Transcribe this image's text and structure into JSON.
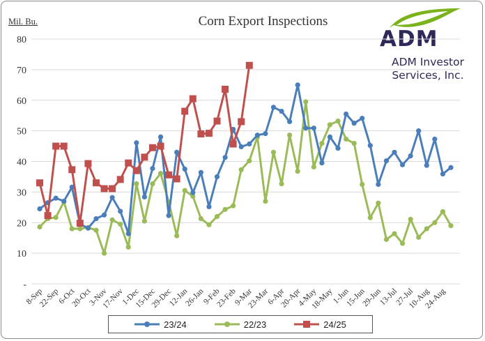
{
  "chart_data": {
    "type": "line",
    "title": "Corn Export Inspections",
    "ylabel": "Mil. Bu.",
    "xlabel": "",
    "ylim": [
      0,
      80
    ],
    "yticks": [
      0,
      10,
      20,
      30,
      40,
      50,
      60,
      70,
      80
    ],
    "ytick_labels": [
      "-",
      "10",
      "20",
      "30",
      "40",
      "50",
      "60",
      "70",
      "80"
    ],
    "grid": true,
    "legend_position": "bottom",
    "x_tick_labels": [
      "8-Sep",
      "22-Sep",
      "6-Oct",
      "20-Oct",
      "3-Nov",
      "17-Nov",
      "1-Dec",
      "15-Dec",
      "29-Dec",
      "12-Jan",
      "26-Jan",
      "9-Feb",
      "23-Feb",
      "9-Mar",
      "23-Mar",
      "6-Apr",
      "20-Apr",
      "4-May",
      "18-May",
      "1-Jun",
      "15-Jun",
      "29-Jun",
      "13-Jul",
      "27-Jul",
      "10-Aug",
      "24-Aug"
    ],
    "series": [
      {
        "name": "23/24",
        "color": "#4a7ebb",
        "marker": "circle",
        "values": [
          24.5,
          26.5,
          28,
          27,
          31.6,
          19.5,
          18.2,
          21.3,
          22.5,
          28.2,
          23.7,
          16.4,
          46.1,
          28.4,
          37.7,
          48,
          22.3,
          43,
          37.5,
          29.8,
          36.4,
          25.2,
          35,
          41.3,
          50.5,
          44.8,
          45.7,
          48.6,
          49.1,
          57.7,
          56.4,
          53,
          65,
          50.9,
          50.9,
          39.5,
          48,
          44.3,
          55.5,
          52.5,
          54.1,
          45.2,
          32.5,
          40.2,
          43,
          38.9,
          41.8,
          50,
          38.7,
          47.3,
          35.9,
          38
        ]
      },
      {
        "name": "22/23",
        "color": "#9bbb59",
        "marker": "circle",
        "values": [
          18.6,
          21.3,
          21.7,
          26.8,
          18,
          18,
          18.4,
          17.5,
          10,
          20.9,
          19.5,
          12,
          32.7,
          20.5,
          32.7,
          36.1,
          26.8,
          15.7,
          30.5,
          28.6,
          21.3,
          19.3,
          22,
          24.3,
          25.5,
          37.3,
          40.2,
          48,
          27,
          43,
          32.7,
          48.6,
          36.8,
          59.5,
          38.2,
          45.9,
          52,
          53.2,
          47.3,
          45.9,
          32.5,
          21.6,
          26.4,
          14.5,
          16.4,
          13.2,
          21.1,
          15.2,
          18,
          20,
          23.6,
          19
        ]
      },
      {
        "name": "24/25",
        "color": "#c0504d",
        "marker": "square",
        "values": [
          33,
          22.3,
          45,
          45,
          37.3,
          19.8,
          39.3,
          33,
          31.1,
          31.1,
          34.1,
          39.5,
          37,
          41.4,
          44.5,
          45,
          35.6,
          34.3,
          56.4,
          60.5,
          49,
          49.2,
          53.2,
          63.6,
          45.7,
          53,
          71.4
        ]
      }
    ]
  },
  "logo": {
    "brand": "ADM",
    "subtitle_line1": "ADM Investor",
    "subtitle_line2": "Services, Inc.",
    "registered": "®"
  }
}
